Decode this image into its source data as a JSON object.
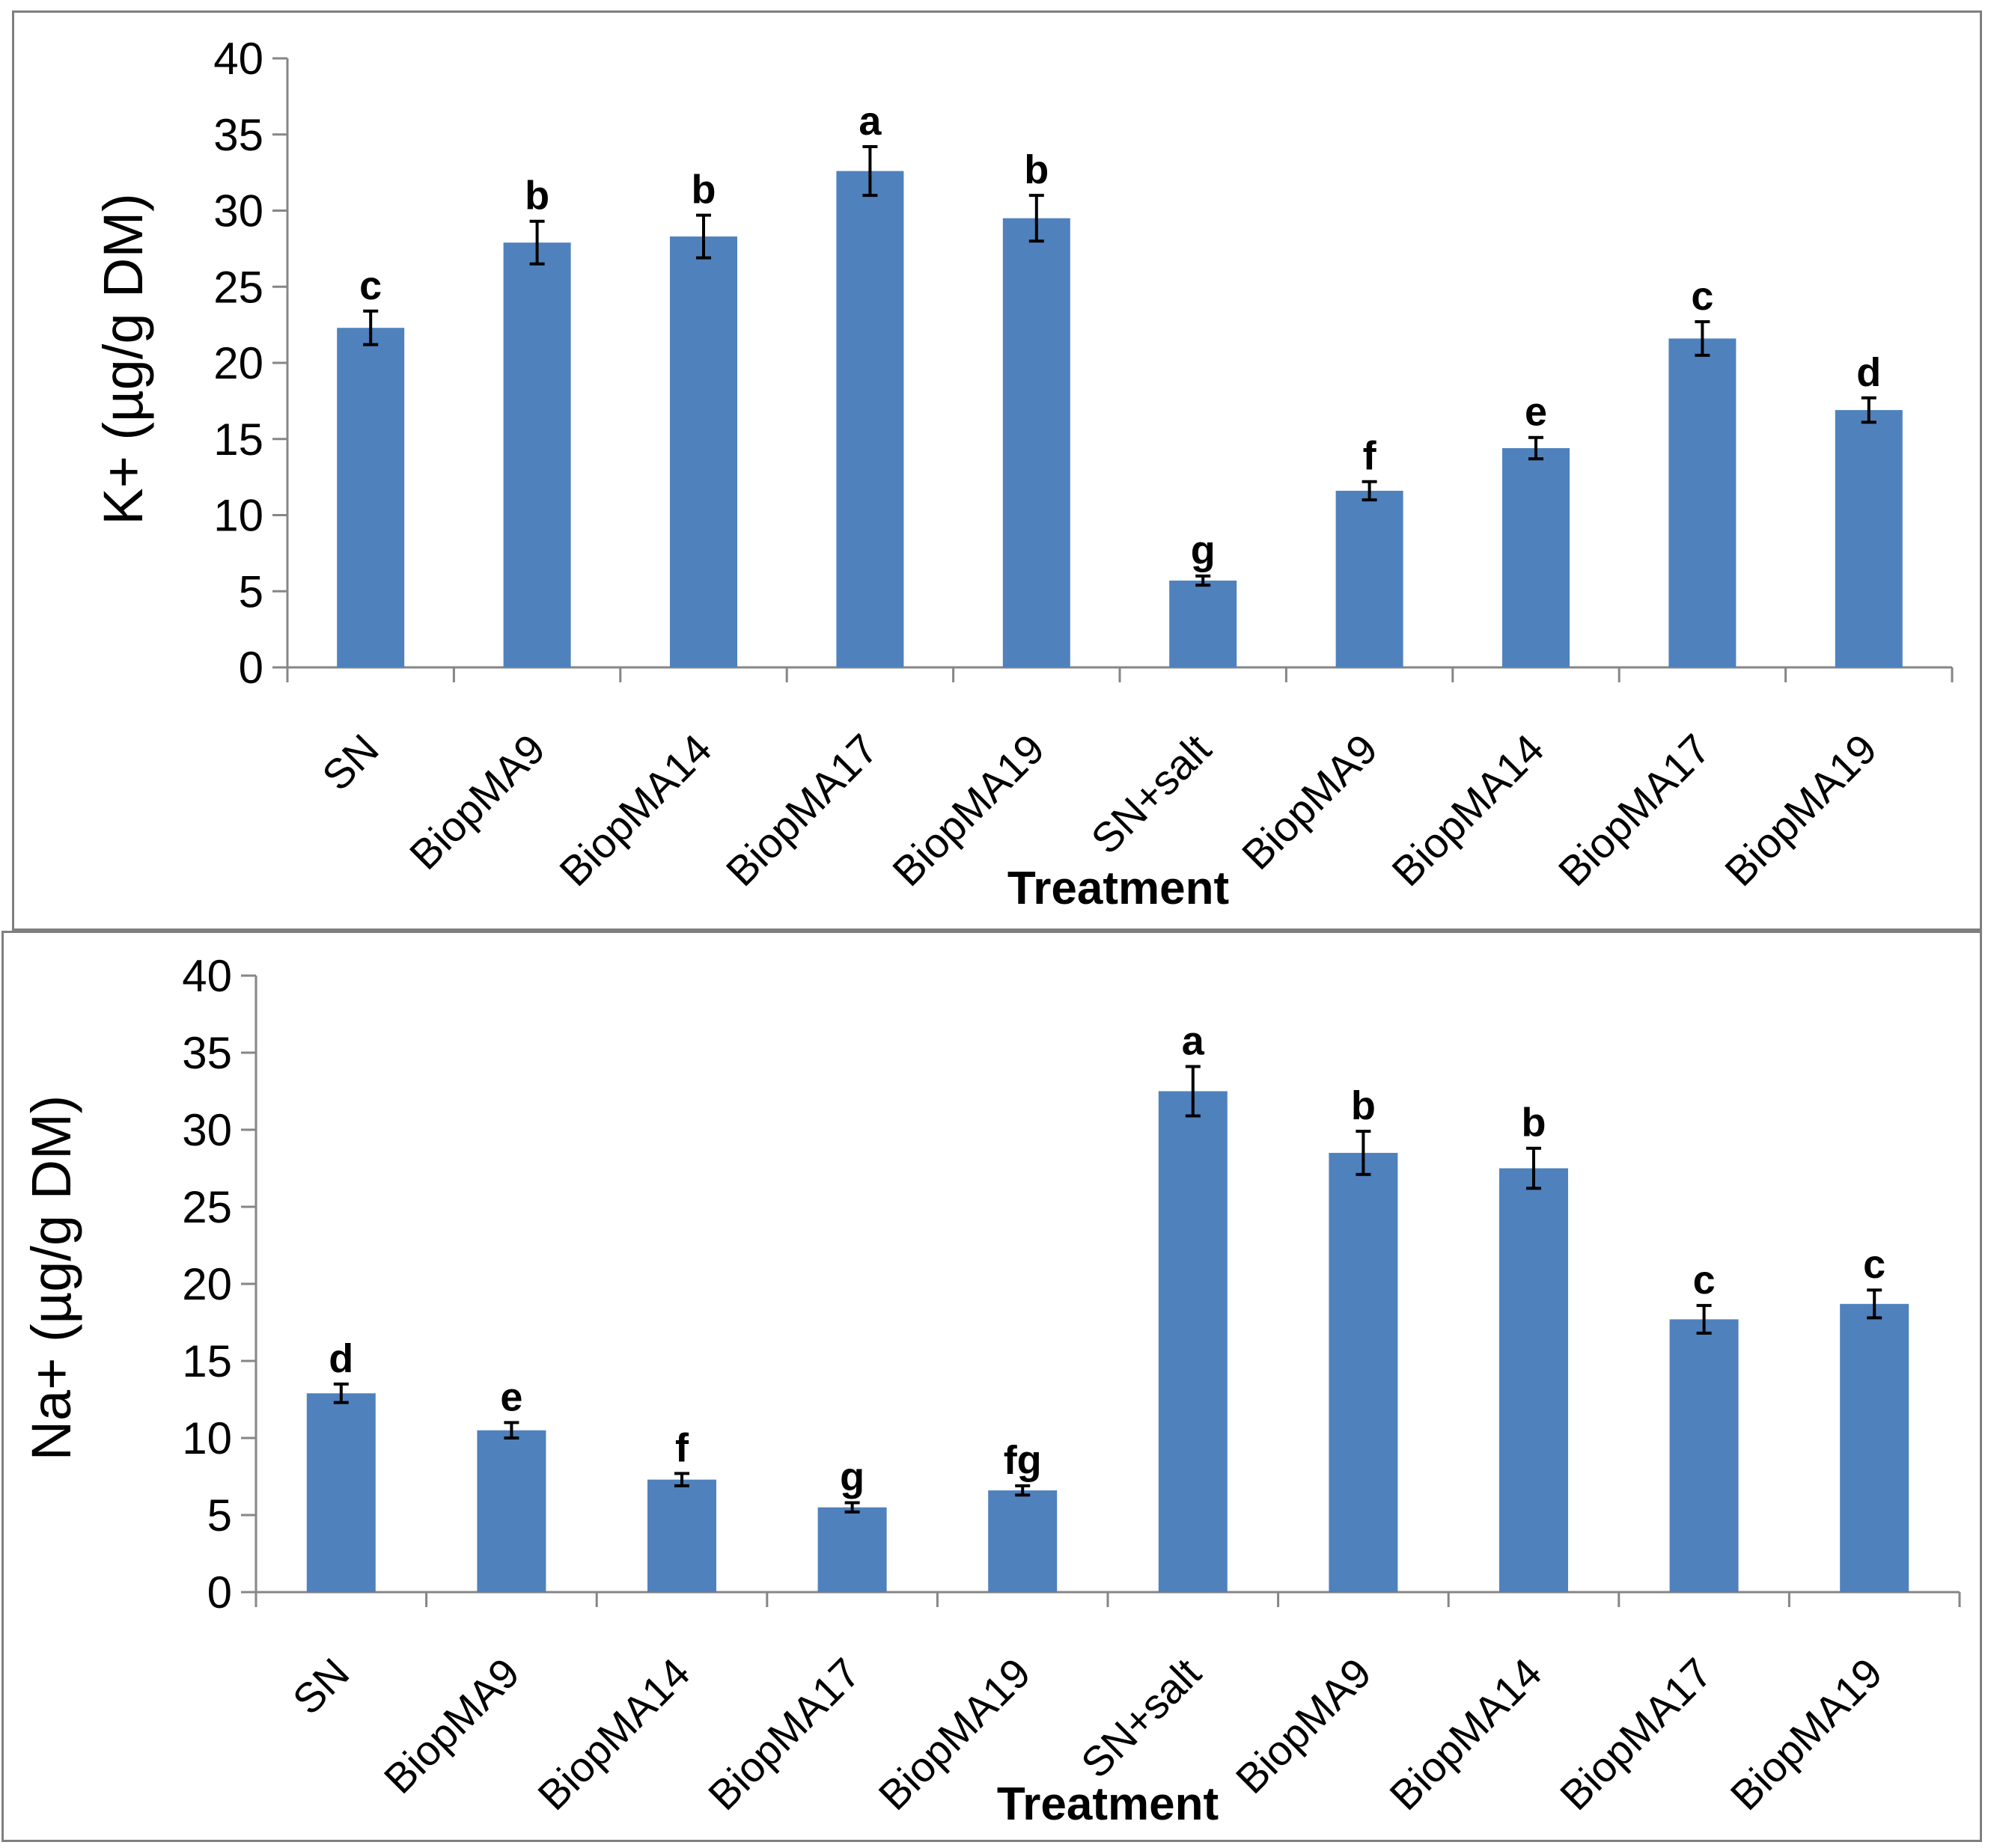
{
  "chart_data": [
    {
      "type": "bar",
      "xlabel": "Treatment",
      "ylabel": "K+ (µg/g DM)",
      "ylim": [
        0,
        40
      ],
      "yticks": [
        "0",
        "5",
        "10",
        "15",
        "20",
        "25",
        "30",
        "35",
        "40"
      ],
      "grid": false,
      "categories": [
        "SN",
        "BiopMA9",
        "BiopMA14",
        "BiopMA17",
        "BiopMA19",
        "SN+salt",
        "BiopMA9",
        "BiopMA14",
        "BiopMA17",
        "BiopMA19"
      ],
      "values": [
        22.3,
        27.9,
        28.3,
        32.6,
        29.5,
        5.7,
        11.6,
        14.4,
        21.6,
        16.9
      ],
      "errors": [
        1.1,
        1.4,
        1.4,
        1.6,
        1.5,
        0.3,
        0.6,
        0.7,
        1.1,
        0.8
      ],
      "letters": [
        "c",
        "b",
        "b",
        "a",
        "b",
        "g",
        "f",
        "e",
        "c",
        "d"
      ],
      "bar_color": "#4f81bd"
    },
    {
      "type": "bar",
      "xlabel": "Treatment",
      "ylabel": "Na+ (µg/g DM)",
      "ylim": [
        0,
        40
      ],
      "yticks": [
        "0",
        "5",
        "10",
        "15",
        "20",
        "25",
        "30",
        "35",
        "40"
      ],
      "grid": false,
      "categories": [
        "SN",
        "BiopMA9",
        "BiopMA14",
        "BiopMA17",
        "BiopMA19",
        "SN+salt",
        "BiopMA9",
        "BiopMA14",
        "BiopMA17",
        "BiopMA19"
      ],
      "values": [
        12.9,
        10.5,
        7.3,
        5.5,
        6.6,
        32.5,
        28.5,
        27.5,
        17.7,
        18.7
      ],
      "errors": [
        0.6,
        0.5,
        0.4,
        0.3,
        0.3,
        1.6,
        1.4,
        1.3,
        0.9,
        0.9
      ],
      "letters": [
        "d",
        "e",
        "f",
        "g",
        "fg",
        "a",
        "b",
        "b",
        "c",
        "c"
      ],
      "bar_color": "#4f81bd"
    }
  ]
}
